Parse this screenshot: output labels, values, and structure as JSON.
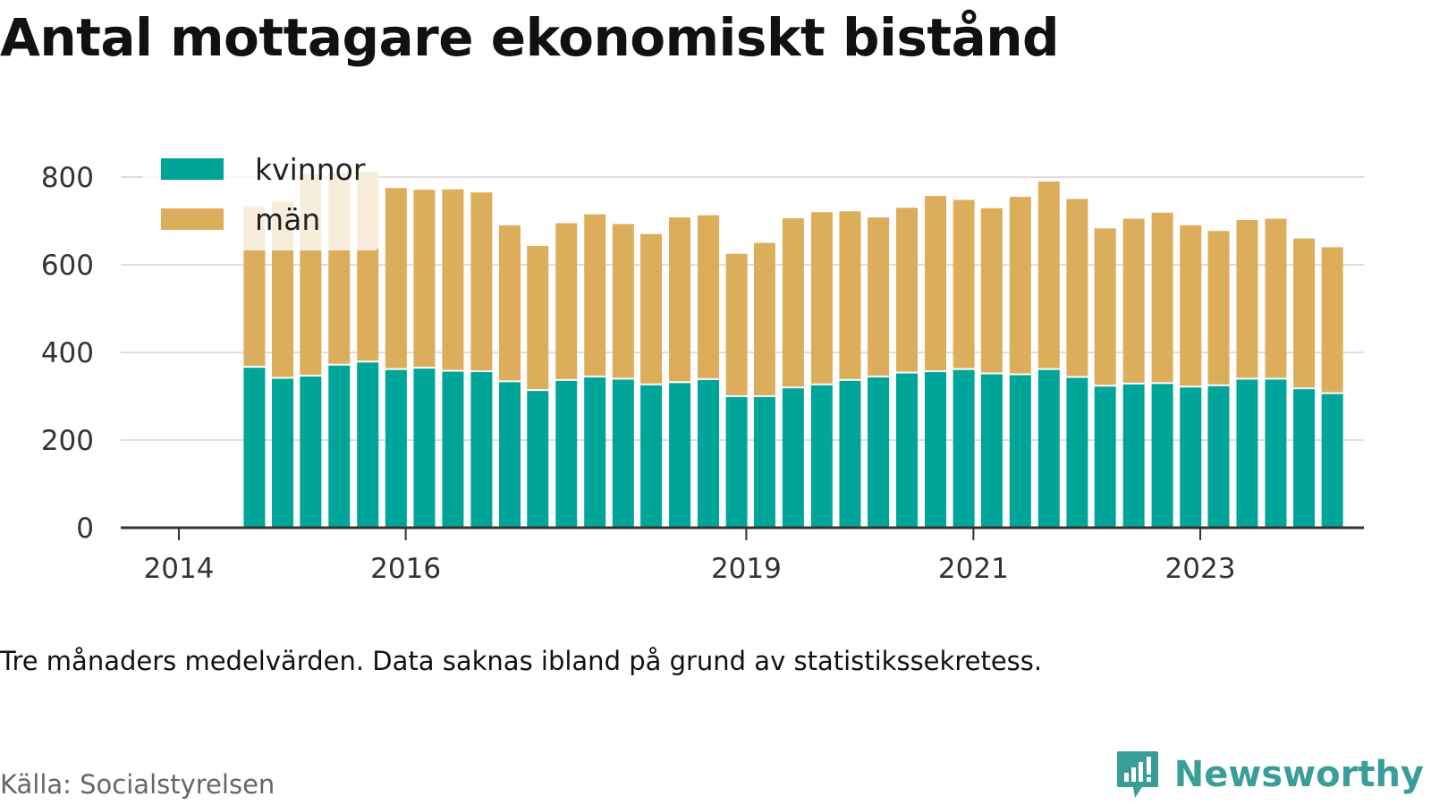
{
  "title": "Antal mottagare ekonomiskt bistånd",
  "note": "Tre månaders medelvärden. Data saknas ibland på grund av statistikssekretess.",
  "source": "Källa: Socialstyrelsen",
  "brand": {
    "name": "Newsworthy",
    "icon": "newsworthy-logo-icon",
    "color": "#3a9e98"
  },
  "colors": {
    "kvinnor": "#00a59a",
    "man": "#dcae5c",
    "grid": "#dddddd",
    "axis": "#333333"
  },
  "chart_data": {
    "type": "bar",
    "stacked": true,
    "legend": {
      "placement": "top-left",
      "entries": [
        "kvinnor",
        "män"
      ]
    },
    "ylim": [
      0,
      800
    ],
    "yticks": [
      "0",
      "200",
      "400",
      "600",
      "800"
    ],
    "xaxis_type": "date",
    "xticks": [
      "2014",
      "2016",
      "2019",
      "2021",
      "2023"
    ],
    "grid": true,
    "x": [
      "2014-09-01",
      "2014-12-01",
      "2015-03-01",
      "2015-06-01",
      "2015-09-01",
      "2015-12-01",
      "2016-03-01",
      "2016-06-01",
      "2016-09-01",
      "2016-12-01",
      "2017-03-01",
      "2017-06-01",
      "2017-09-01",
      "2017-12-01",
      "2018-03-01",
      "2018-06-01",
      "2018-09-01",
      "2018-12-01",
      "2019-03-01",
      "2019-06-01",
      "2019-09-01",
      "2019-12-01",
      "2020-03-01",
      "2020-06-01",
      "2020-09-01",
      "2020-12-01",
      "2021-03-01",
      "2021-06-01",
      "2021-09-01",
      "2021-12-01",
      "2022-03-01",
      "2022-06-01",
      "2022-09-01",
      "2022-12-01",
      "2023-03-01",
      "2023-06-01",
      "2023-09-01",
      "2023-12-01",
      "2024-03-01"
    ],
    "series": [
      {
        "name": "kvinnor",
        "values": [
          365,
          340,
          345,
          370,
          377,
          360,
          363,
          356,
          355,
          332,
          312,
          335,
          343,
          338,
          325,
          330,
          337,
          298,
          298,
          318,
          325,
          335,
          343,
          352,
          355,
          360,
          350,
          348,
          360,
          342,
          322,
          327,
          328,
          320,
          323,
          338,
          338,
          316,
          305
        ]
      },
      {
        "name": "män",
        "values": [
          367,
          404,
          462,
          440,
          435,
          415,
          408,
          416,
          410,
          358,
          331,
          360,
          372,
          355,
          345,
          378,
          376,
          327,
          352,
          388,
          395,
          387,
          365,
          378,
          402,
          388,
          379,
          407,
          430,
          408,
          361,
          378,
          391,
          370,
          354,
          364,
          367,
          344,
          335
        ]
      }
    ]
  }
}
